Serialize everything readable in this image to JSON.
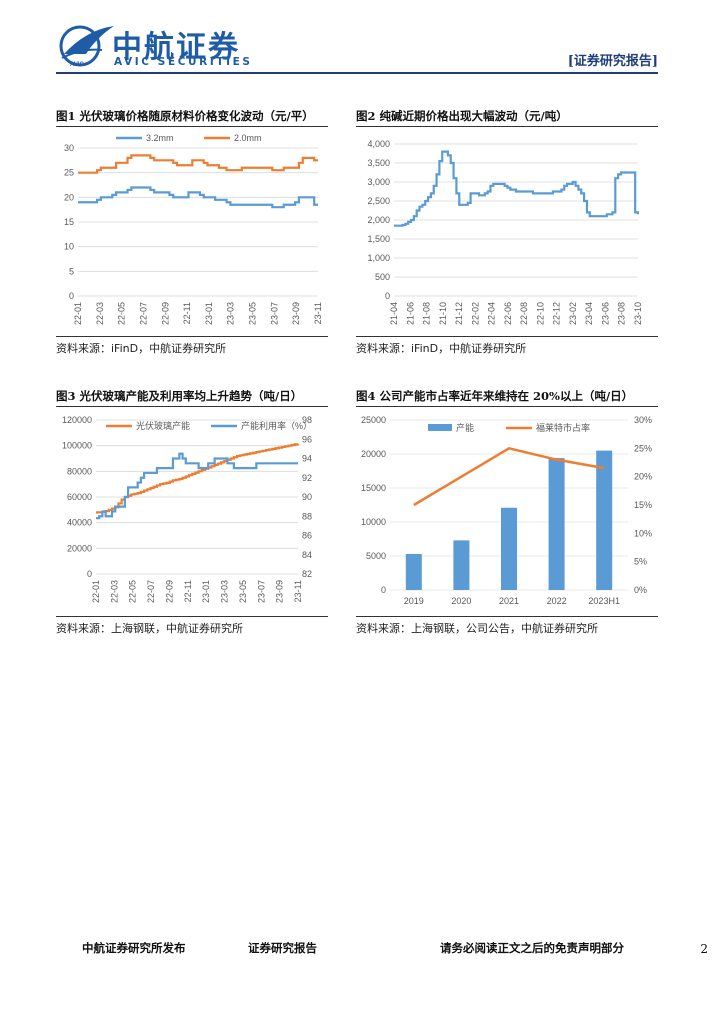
{
  "header": {
    "logo_cn": "中航证券",
    "logo_en": "AVIC SECURITIES",
    "logo_icon_label": "AVIC",
    "report_tag": "[证券研究报告]"
  },
  "figures": [
    {
      "title": "图1  光伏玻璃价格随原材料价格变化波动（元/平）",
      "source": "资料来源：iFinD，中航证券研究所"
    },
    {
      "title": "图2  纯碱近期价格出现大幅波动（元/吨）",
      "source": "资料来源：iFinD，中航证券研究所"
    },
    {
      "title": "图3  光伏玻璃产能及利用率均上升趋势（吨/日）",
      "source": "资料来源：上海钢联，中航证券研究所"
    },
    {
      "title": "图4  公司产能市占率近年来维持在 20%以上（吨/日）",
      "source": "资料来源：上海钢联，公司公告，中航证券研究所"
    }
  ],
  "footer": {
    "left": "中航证券研究所发布",
    "mid": "证券研究报告",
    "right": "请务必阅读正文之后的免责声明部分",
    "page": "2"
  },
  "chart_data": [
    {
      "type": "line",
      "x_ticks": [
        "22-01",
        "22-03",
        "22-05",
        "22-07",
        "22-09",
        "22-11",
        "23-01",
        "23-03",
        "23-05",
        "23-07",
        "23-09",
        "23-11"
      ],
      "ylim": [
        0,
        30
      ],
      "y_ticks": [
        0,
        5,
        10,
        15,
        20,
        25,
        30
      ],
      "grid": true,
      "legend": "top",
      "series": [
        {
          "name": "3.2mm",
          "color": "#5b9bd5",
          "values": [
            19,
            19,
            19,
            19,
            19,
            19.5,
            20,
            20,
            20,
            20.5,
            21,
            21,
            21,
            21.5,
            22,
            22,
            22,
            22,
            22,
            21.5,
            21,
            21,
            21,
            21,
            20.5,
            20,
            20,
            20,
            20,
            21,
            21,
            21,
            20.5,
            20,
            20,
            20,
            19.5,
            19.5,
            19.5,
            19,
            18.5,
            18.5,
            18.5,
            18.5,
            18.5,
            18.5,
            18.5,
            18.5,
            18.5,
            18.5,
            18.5,
            18,
            18,
            18,
            18.5,
            18.5,
            18.5,
            19,
            20,
            20,
            20,
            20,
            18.5,
            18.5
          ]
        },
        {
          "name": "2.0mm",
          "color": "#ed7d31",
          "values": [
            25,
            25,
            25,
            25,
            25,
            25.5,
            26,
            26,
            26,
            26,
            27,
            27,
            27,
            28,
            28.5,
            28.5,
            28.5,
            28.5,
            28.5,
            28,
            27.5,
            27.5,
            27.5,
            27.5,
            27.5,
            27,
            26.5,
            26.5,
            26.5,
            26.5,
            27.5,
            27.5,
            27.5,
            27,
            26.5,
            26.5,
            26.5,
            26,
            26,
            25.5,
            25.5,
            25.5,
            25.5,
            26,
            26,
            26,
            26,
            26,
            26,
            26,
            26,
            25.5,
            25.5,
            25.5,
            26,
            26,
            26,
            26,
            27,
            28,
            28,
            28,
            27.5,
            27.5
          ]
        }
      ]
    },
    {
      "type": "line",
      "x_ticks": [
        "21-04",
        "21-06",
        "21-08",
        "21-10",
        "21-12",
        "22-02",
        "22-04",
        "22-06",
        "22-08",
        "22-10",
        "22-12",
        "23-02",
        "23-04",
        "23-06",
        "23-08",
        "23-10"
      ],
      "ylim": [
        0,
        4000
      ],
      "y_ticks": [
        "0",
        "500",
        "1,000",
        "1,500",
        "2,000",
        "2,500",
        "3,000",
        "3,500",
        "4,000"
      ],
      "grid": true,
      "series": [
        {
          "name": "纯碱",
          "color": "#5b9bd5",
          "values": [
            1850,
            1850,
            1850,
            1870,
            1900,
            1950,
            2000,
            2100,
            2250,
            2350,
            2400,
            2500,
            2600,
            2700,
            2900,
            3200,
            3550,
            3800,
            3800,
            3700,
            3500,
            3100,
            2700,
            2400,
            2400,
            2400,
            2450,
            2700,
            2700,
            2700,
            2650,
            2650,
            2700,
            2750,
            2900,
            2950,
            2950,
            2950,
            2950,
            2900,
            2850,
            2800,
            2800,
            2750,
            2750,
            2750,
            2750,
            2750,
            2750,
            2700,
            2700,
            2700,
            2700,
            2700,
            2700,
            2700,
            2750,
            2750,
            2750,
            2800,
            2900,
            2950,
            2950,
            3000,
            2900,
            2800,
            2700,
            2500,
            2200,
            2100,
            2100,
            2100,
            2100,
            2100,
            2100,
            2150,
            2150,
            2200,
            3100,
            3200,
            3250,
            3250,
            3250,
            3250,
            3250,
            2200,
            2150
          ]
        }
      ]
    },
    {
      "type": "line",
      "x_ticks": [
        "22-01",
        "22-03",
        "22-05",
        "22-07",
        "22-09",
        "22-11",
        "23-01",
        "23-03",
        "23-05",
        "23-07",
        "23-09",
        "23-11"
      ],
      "ylim_left": [
        0,
        120000
      ],
      "y_ticks_left": [
        0,
        20000,
        40000,
        60000,
        80000,
        100000,
        120000
      ],
      "ylim_right": [
        82,
        98
      ],
      "y_ticks_right": [
        82,
        84,
        86,
        88,
        90,
        92,
        94,
        96,
        98
      ],
      "grid": true,
      "legend": "top",
      "series": [
        {
          "name": "光伏玻璃产能",
          "axis": "left",
          "color": "#ed7d31",
          "values": [
            48000,
            48000,
            48500,
            49000,
            50000,
            51000,
            52000,
            55000,
            58000,
            60000,
            61000,
            62000,
            62500,
            63000,
            64000,
            65000,
            66000,
            67000,
            68000,
            69000,
            70000,
            70500,
            71000,
            72000,
            73000,
            73500,
            74000,
            75000,
            76000,
            77000,
            78000,
            79000,
            80000,
            81000,
            82000,
            83000,
            84000,
            85000,
            86000,
            87000,
            88000,
            89000,
            90000,
            91000,
            92000,
            92500,
            93000,
            93500,
            94000,
            94500,
            95000,
            95500,
            96000,
            96500,
            97000,
            97500,
            98000,
            98500,
            99000,
            99500,
            100000,
            100500,
            101000,
            101500
          ]
        },
        {
          "name": "产能利用率（%）",
          "axis": "right",
          "color": "#5b9bd5",
          "values": [
            87.8,
            88,
            88.5,
            88,
            88,
            88.5,
            89,
            89,
            89,
            90,
            91,
            91,
            91,
            91.5,
            92,
            92.5,
            92.5,
            92.5,
            92.5,
            93,
            93,
            93,
            93,
            93,
            94,
            94,
            94.5,
            94,
            93.5,
            93.5,
            93.5,
            93.5,
            93,
            93,
            93,
            93.5,
            93.5,
            94,
            94,
            94,
            94,
            93.5,
            93.5,
            93,
            93,
            93,
            93,
            93,
            93,
            93,
            93.5,
            93.5,
            93.5,
            93.5,
            93.5,
            93.5,
            93.5,
            93.5,
            93.5,
            93.5,
            93.5,
            93.5,
            93.5,
            93.5
          ]
        }
      ]
    },
    {
      "type": "bar",
      "categories": [
        "2019",
        "2020",
        "2021",
        "2022",
        "2023H1"
      ],
      "ylim_left": [
        0,
        25000
      ],
      "y_ticks_left": [
        0,
        5000,
        10000,
        15000,
        20000,
        25000
      ],
      "ylim_right": [
        0,
        30
      ],
      "y_ticks_right": [
        "0%",
        "5%",
        "10%",
        "15%",
        "20%",
        "25%",
        "30%"
      ],
      "legend": "top",
      "series": [
        {
          "name": "产能",
          "kind": "bar",
          "axis": "left",
          "color": "#5b9bd5",
          "values": [
            5300,
            7300,
            12100,
            19400,
            20500
          ]
        },
        {
          "name": "福莱特市占率",
          "kind": "line",
          "axis": "right",
          "color": "#ed7d31",
          "values": [
            15,
            20,
            25,
            23,
            21.5
          ]
        }
      ]
    }
  ]
}
